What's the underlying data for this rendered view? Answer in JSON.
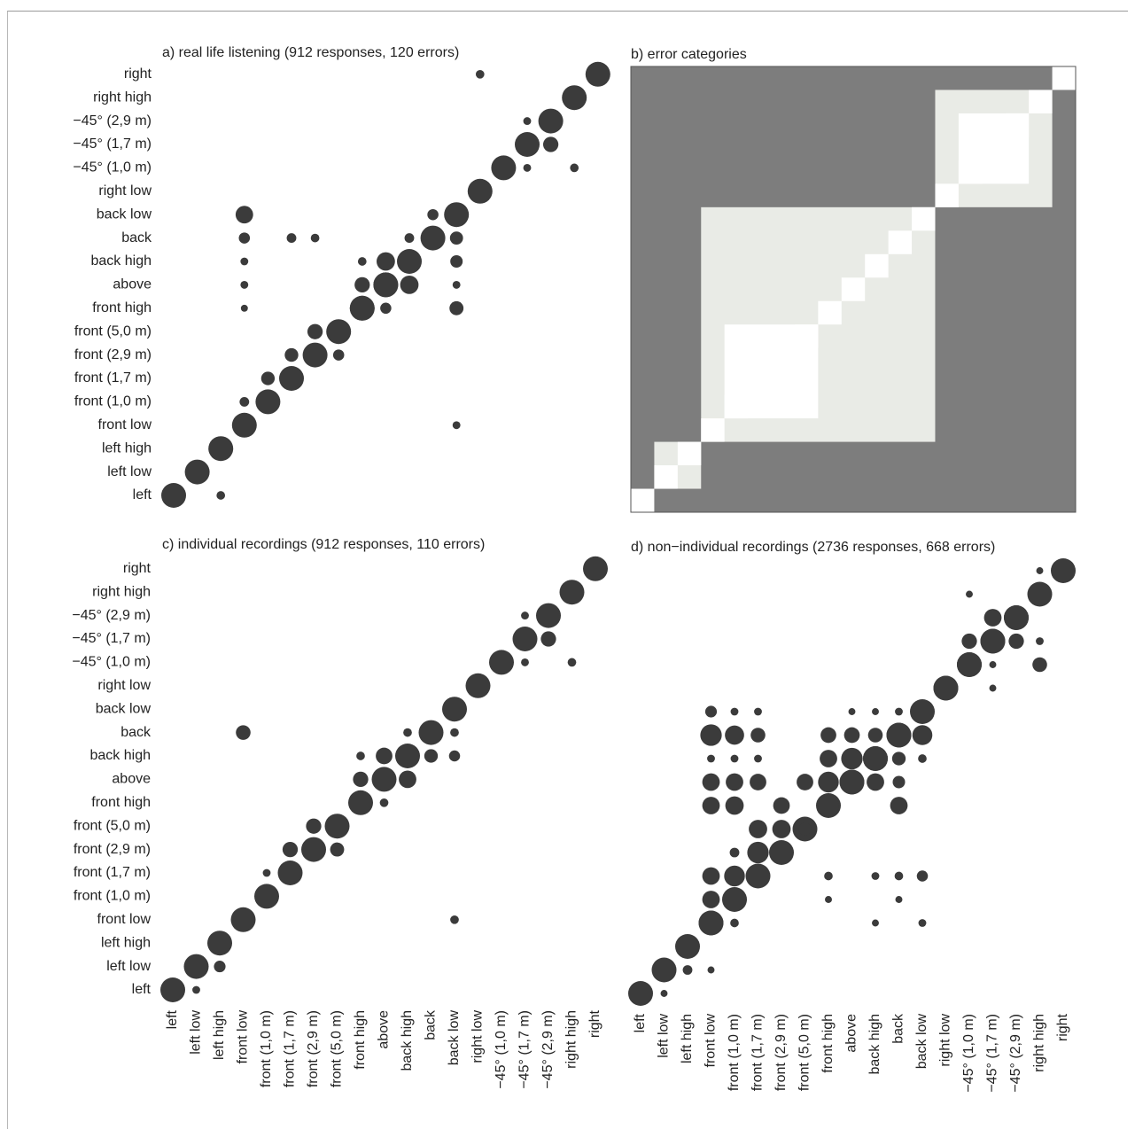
{
  "colors": {
    "dot": "#3b3b3b",
    "cat_dark": "#7d7d7d",
    "cat_light": "#e9ebe6",
    "cat_white": "#ffffff",
    "text": "#222222"
  },
  "chart_data": [
    {
      "panel": "a",
      "type": "scatter",
      "title": "a) real life listening (912 responses, 120 errors)",
      "categories": [
        "left",
        "left low",
        "left high",
        "front low",
        "front (1,0 m)",
        "front (1,7 m)",
        "front (2,9 m)",
        "front (5,0 m)",
        "front high",
        "above",
        "back high",
        "back",
        "back low",
        "right low",
        "−45° (1,0 m)",
        "−45° (1,7 m)",
        "−45° (2,9 m)",
        "right high",
        "right"
      ],
      "y_categories": [
        "left",
        "left low",
        "left high",
        "front low",
        "front (1,0 m)",
        "front (1,7 m)",
        "front (2,9 m)",
        "front (5,0 m)",
        "front high",
        "above",
        "back high",
        "back",
        "back low",
        "right low",
        "−45° (1,0 m)",
        "−45° (1,7 m)",
        "−45° (2,9 m)",
        "right high",
        "right"
      ],
      "x_tick_labels_shown": false,
      "points": [
        [
          0,
          0,
          1
        ],
        [
          1,
          1,
          1
        ],
        [
          2,
          2,
          1
        ],
        [
          3,
          3,
          1
        ],
        [
          4,
          4,
          1
        ],
        [
          5,
          5,
          1
        ],
        [
          6,
          6,
          1
        ],
        [
          7,
          7,
          1
        ],
        [
          8,
          8,
          1
        ],
        [
          9,
          9,
          1
        ],
        [
          10,
          10,
          1
        ],
        [
          11,
          11,
          1
        ],
        [
          12,
          12,
          1
        ],
        [
          13,
          13,
          1
        ],
        [
          14,
          14,
          1
        ],
        [
          15,
          15,
          1
        ],
        [
          16,
          16,
          1
        ],
        [
          17,
          17,
          1
        ],
        [
          18,
          18,
          1
        ],
        [
          2,
          0,
          0.12
        ],
        [
          3,
          4,
          0.15
        ],
        [
          4,
          5,
          0.3
        ],
        [
          5,
          6,
          0.3
        ],
        [
          6,
          7,
          0.38
        ],
        [
          7,
          6,
          0.2
        ],
        [
          8,
          9,
          0.38
        ],
        [
          8,
          10,
          0.12
        ],
        [
          8,
          8,
          1
        ],
        [
          9,
          10,
          0.55
        ],
        [
          9,
          9,
          1
        ],
        [
          10,
          9,
          0.55
        ],
        [
          12,
          10,
          0.25
        ],
        [
          9,
          8,
          0.2
        ],
        [
          3,
          10,
          0.1
        ],
        [
          3,
          9,
          0.1
        ],
        [
          3,
          8,
          0.08
        ],
        [
          3,
          11,
          0.2
        ],
        [
          5,
          11,
          0.15
        ],
        [
          6,
          11,
          0.12
        ],
        [
          3,
          12,
          0.5
        ],
        [
          11,
          12,
          0.2
        ],
        [
          10,
          11,
          0.15
        ],
        [
          12,
          11,
          0.28
        ],
        [
          12,
          9,
          0.1
        ],
        [
          12,
          8,
          0.32
        ],
        [
          12,
          3,
          0.1
        ],
        [
          15,
          14,
          0.1
        ],
        [
          15,
          16,
          0.1
        ],
        [
          16,
          15,
          0.38
        ],
        [
          17,
          14,
          0.12
        ],
        [
          13,
          18,
          0.12
        ]
      ]
    },
    {
      "panel": "b",
      "type": "heatmap",
      "title": "b) error categories",
      "groups": [
        {
          "start": 0,
          "end": 0,
          "shade": "white"
        },
        {
          "start": 1,
          "end": 2,
          "shade": "light"
        },
        {
          "start": 3,
          "end": 12,
          "shade": "light"
        },
        {
          "start": 4,
          "end": 7,
          "shade": "white_block"
        },
        {
          "start": 13,
          "end": 17,
          "shade": "light"
        },
        {
          "start": 14,
          "end": 16,
          "shade": "white_block"
        },
        {
          "start": 18,
          "end": 18,
          "shade": "white"
        }
      ]
    },
    {
      "panel": "c",
      "type": "scatter",
      "title": "c) individual recordings (912 responses, 110 errors)",
      "categories": [
        "left",
        "left low",
        "left high",
        "front low",
        "front (1,0 m)",
        "front (1,7 m)",
        "front (2,9 m)",
        "front (5,0 m)",
        "front high",
        "above",
        "back high",
        "back",
        "back low",
        "right low",
        "−45° (1,0 m)",
        "−45° (1,7 m)",
        "−45° (2,9 m)",
        "right high",
        "right"
      ],
      "y_categories": [
        "left",
        "left low",
        "left high",
        "front low",
        "front (1,0 m)",
        "front (1,7 m)",
        "front (2,9 m)",
        "front (5,0 m)",
        "front high",
        "above",
        "back high",
        "back",
        "back low",
        "right low",
        "−45° (1,0 m)",
        "−45° (1,7 m)",
        "−45° (2,9 m)",
        "right high",
        "right"
      ],
      "x_tick_labels_shown": true,
      "points": [
        [
          0,
          0,
          1
        ],
        [
          1,
          1,
          1
        ],
        [
          2,
          2,
          1
        ],
        [
          3,
          3,
          1
        ],
        [
          4,
          4,
          1
        ],
        [
          5,
          5,
          1
        ],
        [
          6,
          6,
          1
        ],
        [
          7,
          7,
          1
        ],
        [
          8,
          8,
          1
        ],
        [
          9,
          9,
          1
        ],
        [
          10,
          10,
          1
        ],
        [
          11,
          11,
          1
        ],
        [
          12,
          12,
          1
        ],
        [
          13,
          13,
          1
        ],
        [
          14,
          14,
          1
        ],
        [
          15,
          15,
          1
        ],
        [
          16,
          16,
          1
        ],
        [
          17,
          17,
          1
        ],
        [
          18,
          18,
          1
        ],
        [
          1,
          0,
          0.1
        ],
        [
          2,
          1,
          0.22
        ],
        [
          4,
          5,
          0.1
        ],
        [
          5,
          6,
          0.38
        ],
        [
          6,
          7,
          0.38
        ],
        [
          7,
          6,
          0.32
        ],
        [
          8,
          9,
          0.38
        ],
        [
          8,
          10,
          0.12
        ],
        [
          9,
          10,
          0.45
        ],
        [
          10,
          9,
          0.5
        ],
        [
          11,
          10,
          0.3
        ],
        [
          9,
          8,
          0.12
        ],
        [
          3,
          11,
          0.35
        ],
        [
          10,
          11,
          0.12
        ],
        [
          12,
          11,
          0.12
        ],
        [
          12,
          10,
          0.2
        ],
        [
          12,
          3,
          0.12
        ],
        [
          15,
          14,
          0.1
        ],
        [
          15,
          16,
          0.1
        ],
        [
          16,
          15,
          0.38
        ],
        [
          17,
          14,
          0.12
        ]
      ]
    },
    {
      "panel": "d",
      "type": "scatter",
      "title": "d) non−individual recordings (2736 responses, 668 errors)",
      "categories": [
        "left",
        "left low",
        "left high",
        "front low",
        "front (1,0 m)",
        "front (1,7 m)",
        "front (2,9 m)",
        "front (5,0 m)",
        "front high",
        "above",
        "back high",
        "back",
        "back low",
        "right low",
        "−45° (1,0 m)",
        "−45° (1,7 m)",
        "−45° (2,9 m)",
        "right high",
        "right"
      ],
      "y_categories": [
        "left",
        "left low",
        "left high",
        "front low",
        "front (1,0 m)",
        "front (1,7 m)",
        "front (2,9 m)",
        "front (5,0 m)",
        "front high",
        "above",
        "back high",
        "back",
        "back low",
        "right low",
        "−45° (1,0 m)",
        "−45° (1,7 m)",
        "−45° (2,9 m)",
        "right high",
        "right"
      ],
      "y_tick_labels_shown": false,
      "x_tick_labels_shown": true,
      "points": [
        [
          0,
          0,
          1
        ],
        [
          1,
          1,
          1
        ],
        [
          2,
          2,
          1
        ],
        [
          3,
          3,
          1
        ],
        [
          4,
          4,
          1
        ],
        [
          5,
          5,
          1
        ],
        [
          6,
          6,
          1
        ],
        [
          7,
          7,
          1
        ],
        [
          8,
          8,
          1
        ],
        [
          9,
          9,
          1
        ],
        [
          10,
          10,
          1
        ],
        [
          11,
          11,
          1
        ],
        [
          12,
          12,
          1
        ],
        [
          13,
          13,
          1
        ],
        [
          14,
          14,
          1
        ],
        [
          15,
          15,
          1
        ],
        [
          16,
          16,
          1
        ],
        [
          17,
          17,
          1
        ],
        [
          18,
          18,
          1
        ],
        [
          1,
          0,
          0.08
        ],
        [
          2,
          1,
          0.15
        ],
        [
          3,
          1,
          0.08
        ],
        [
          3,
          3,
          1
        ],
        [
          3,
          4,
          0.5
        ],
        [
          4,
          3,
          0.12
        ],
        [
          3,
          5,
          0.5
        ],
        [
          4,
          5,
          0.7
        ],
        [
          4,
          6,
          0.15
        ],
        [
          5,
          6,
          0.75
        ],
        [
          5,
          7,
          0.55
        ],
        [
          6,
          7,
          0.55
        ],
        [
          6,
          8,
          0.45
        ],
        [
          7,
          7,
          0.25
        ],
        [
          7,
          9,
          0.45
        ],
        [
          3,
          8,
          0.5
        ],
        [
          4,
          8,
          0.55
        ],
        [
          3,
          9,
          0.5
        ],
        [
          4,
          9,
          0.5
        ],
        [
          5,
          9,
          0.45
        ],
        [
          3,
          10,
          0.1
        ],
        [
          4,
          10,
          0.1
        ],
        [
          5,
          10,
          0.1
        ],
        [
          3,
          11,
          0.75
        ],
        [
          4,
          11,
          0.6
        ],
        [
          5,
          11,
          0.35
        ],
        [
          3,
          12,
          0.22
        ],
        [
          4,
          12,
          0.1
        ],
        [
          5,
          12,
          0.1
        ],
        [
          8,
          8,
          0.7
        ],
        [
          8,
          9,
          0.7
        ],
        [
          9,
          9,
          1
        ],
        [
          10,
          9,
          0.5
        ],
        [
          8,
          10,
          0.5
        ],
        [
          9,
          10,
          0.75
        ],
        [
          10,
          10,
          1
        ],
        [
          11,
          10,
          0.3
        ],
        [
          8,
          11,
          0.4
        ],
        [
          9,
          11,
          0.4
        ],
        [
          10,
          11,
          0.35
        ],
        [
          11,
          11,
          1
        ],
        [
          12,
          11,
          0.65
        ],
        [
          11,
          9,
          0.25
        ],
        [
          11,
          8,
          0.5
        ],
        [
          12,
          10,
          0.12
        ],
        [
          11,
          12,
          0.1
        ],
        [
          9,
          12,
          0.08
        ],
        [
          10,
          12,
          0.08
        ],
        [
          8,
          5,
          0.12
        ],
        [
          10,
          5,
          0.1
        ],
        [
          11,
          5,
          0.12
        ],
        [
          12,
          5,
          0.2
        ],
        [
          8,
          4,
          0.08
        ],
        [
          11,
          4,
          0.08
        ],
        [
          10,
          3,
          0.08
        ],
        [
          12,
          3,
          0.1
        ],
        [
          13,
          13,
          1
        ],
        [
          14,
          14,
          1
        ],
        [
          14,
          15,
          0.38
        ],
        [
          15,
          15,
          1
        ],
        [
          15,
          16,
          0.5
        ],
        [
          16,
          16,
          1
        ],
        [
          16,
          15,
          0.38
        ],
        [
          17,
          15,
          0.1
        ],
        [
          17,
          14,
          0.35
        ],
        [
          15,
          13,
          0.08
        ],
        [
          14,
          17,
          0.08
        ],
        [
          17,
          18,
          0.08
        ],
        [
          15,
          14,
          0.08
        ]
      ]
    }
  ]
}
